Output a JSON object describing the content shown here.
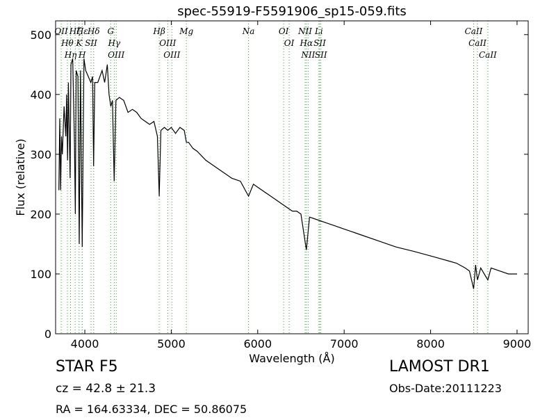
{
  "chart_data": {
    "type": "line",
    "title": "spec-55919-F5591906_sp15-059.fits",
    "x_label": "Wavelength (Å)",
    "y_label": "Flux (relative)",
    "xlim": [
      3662,
      9129
    ],
    "ylim": [
      0,
      523
    ],
    "xticks": [
      4000,
      5000,
      6000,
      7000,
      8000,
      9000
    ],
    "yticks": [
      0,
      100,
      200,
      300,
      400,
      500
    ],
    "series": [
      {
        "color": "#000000",
        "x": [
          3700,
          3710,
          3720,
          3730,
          3740,
          3760,
          3780,
          3790,
          3800,
          3810,
          3830,
          3840,
          3860,
          3880,
          3890,
          3900,
          3920,
          3935,
          3950,
          3970,
          3990,
          4010,
          4040,
          4070,
          4090,
          4102,
          4115,
          4150,
          4200,
          4230,
          4260,
          4280,
          4300,
          4320,
          4340,
          4360,
          4400,
          4450,
          4500,
          4550,
          4600,
          4650,
          4700,
          4750,
          4800,
          4840,
          4861,
          4880,
          4920,
          4960,
          5000,
          5050,
          5100,
          5150,
          5175,
          5200,
          5250,
          5300,
          5400,
          5500,
          5600,
          5700,
          5800,
          5894,
          5950,
          6000,
          6100,
          6200,
          6300,
          6400,
          6450,
          6500,
          6563,
          6600,
          6700,
          6800,
          6900,
          7000,
          7200,
          7400,
          7600,
          7800,
          8000,
          8200,
          8300,
          8400,
          8450,
          8498,
          8520,
          8542,
          8580,
          8662,
          8700,
          8800,
          8900,
          9000
        ],
        "values": [
          240,
          360,
          240,
          330,
          300,
          380,
          330,
          400,
          290,
          420,
          260,
          450,
          460,
          320,
          200,
          440,
          430,
          150,
          440,
          145,
          460,
          440,
          430,
          420,
          430,
          280,
          420,
          420,
          440,
          420,
          450,
          400,
          380,
          390,
          255,
          390,
          395,
          390,
          370,
          375,
          370,
          360,
          355,
          350,
          355,
          330,
          230,
          340,
          345,
          340,
          345,
          335,
          345,
          340,
          320,
          320,
          310,
          305,
          290,
          280,
          270,
          260,
          255,
          230,
          250,
          245,
          235,
          225,
          215,
          205,
          205,
          200,
          140,
          195,
          190,
          185,
          180,
          175,
          165,
          155,
          145,
          138,
          130,
          122,
          118,
          110,
          105,
          75,
          115,
          90,
          110,
          90,
          110,
          105,
          100,
          100
        ]
      }
    ],
    "lines": {
      "color": "#2ca02c",
      "wavelengths": [
        3727,
        3798,
        3835,
        3889,
        3934,
        3969,
        3970,
        4072,
        4102,
        4300,
        4340,
        4363,
        4861,
        4959,
        5007,
        5175,
        5894,
        6300,
        6364,
        6548,
        6563,
        6583,
        6708,
        6717,
        6731,
        8498,
        8542,
        8662
      ],
      "labels": [
        "OII",
        "Hθ",
        "Hη",
        "Hζ",
        "K",
        "H",
        "Hε",
        "SII",
        "Hδ",
        "G",
        "Hγ",
        "OIII",
        "Hβ",
        "OIII",
        "OIII",
        "Mg",
        "Na",
        "OI",
        "OI",
        "NII",
        "Hα",
        "NII",
        "Li",
        "SII",
        "SII",
        "CaII",
        "CaII",
        "CaII"
      ]
    },
    "footer": {
      "object": "STAR   F5",
      "survey": "LAMOST DR1",
      "cz": "cz = 42.8 ± 21.3",
      "date": "Obs-Date:20111223",
      "coords": "RA = 164.63334, DEC = 50.86075"
    }
  }
}
